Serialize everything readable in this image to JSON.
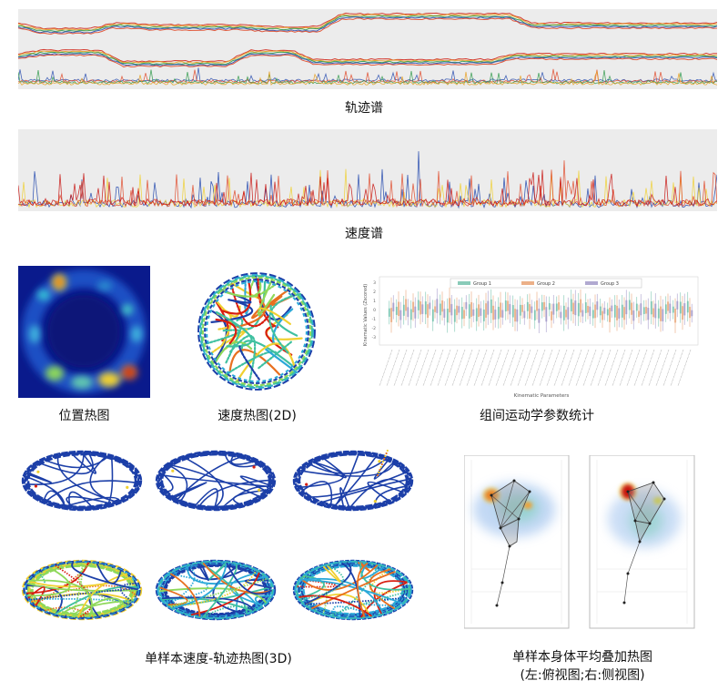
{
  "captions": {
    "trajectory_spectrum": "轨迹谱",
    "speed_spectrum": "速度谱",
    "position_heatmap": "位置热图",
    "speed_heatmap_2d": "速度热图(2D)",
    "group_kinematics": "组间运动学参数统计",
    "speed_trajectory_3d": "单样本速度-轨迹热图(3D)",
    "body_overlay_line1": "单样本身体平均叠加热图",
    "body_overlay_line2": "(左:俯视图;右:侧视图)"
  },
  "boxplot": {
    "legend": [
      "Group 1",
      "Group 2",
      "Group 3"
    ],
    "ylabel": "Kinematic Values (Zscored)",
    "xlabel": "Kinematic Parameters",
    "yticks": [
      "3",
      "2",
      "1",
      "0",
      "-1",
      "-2",
      "-3"
    ],
    "colors": [
      "#3aa88a",
      "#e07b39",
      "#7d6fb3"
    ]
  },
  "colors": {
    "spectrum_bg": "#ececec",
    "heat_low": "#0a1a8c",
    "heat_mid": "#2aa8d8",
    "heat_high": "#d81e10",
    "trajectory_blue": "#1c3fa8"
  }
}
